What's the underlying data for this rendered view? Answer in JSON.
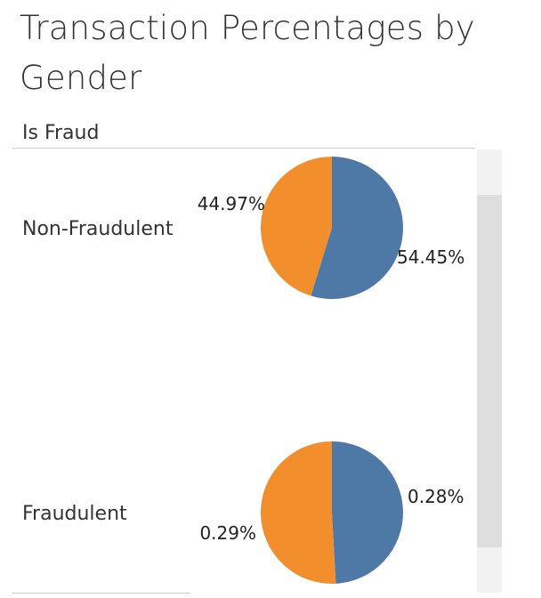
{
  "title": "Transaction Percentages by Gender",
  "column_header": "Is Fraud",
  "colors": {
    "blue": "#4e79a7",
    "orange": "#f28e2b"
  },
  "chart_data": {
    "type": "pie",
    "title": "Transaction Percentages by Gender",
    "row_dimension": "Is Fraud",
    "pies": [
      {
        "category": "Non-Fraudulent",
        "slices": [
          {
            "value": 54.45,
            "label": "54.45%",
            "color": "#4e79a7"
          },
          {
            "value": 44.97,
            "label": "44.97%",
            "color": "#f28e2b"
          }
        ]
      },
      {
        "category": "Fraudulent",
        "slices": [
          {
            "value": 0.28,
            "label": "0.28%",
            "color": "#4e79a7"
          },
          {
            "value": 0.29,
            "label": "0.29%",
            "color": "#f28e2b"
          }
        ]
      }
    ]
  }
}
